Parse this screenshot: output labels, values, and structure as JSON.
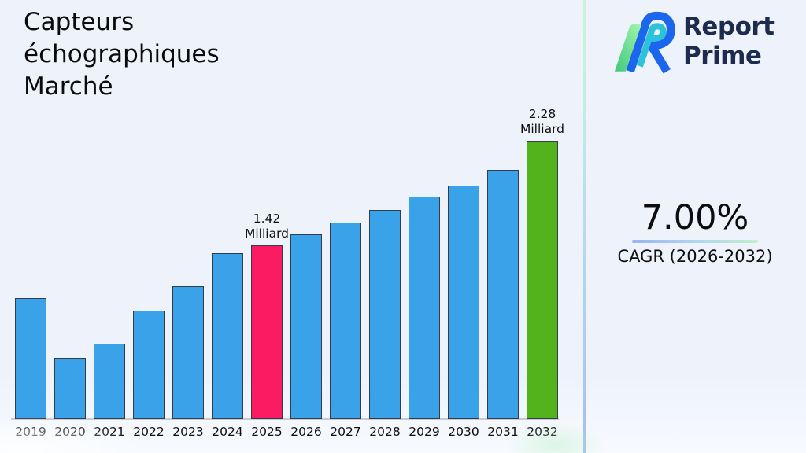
{
  "title": {
    "lines": [
      "Capteurs",
      "échographiques",
      "Marché"
    ]
  },
  "brand": {
    "line1": "Report",
    "line2": "Prime",
    "colors": {
      "navy": "#1d2b4e",
      "blue": "#1b66ec",
      "teal": "#2cc3da",
      "green_light": "#a5f6ab",
      "green_dark": "#3ec87e"
    }
  },
  "cagr": {
    "value": "7.00%",
    "label": "CAGR (2026-2032)"
  },
  "colors": {
    "background": "#edf2fb",
    "divider_top": "#ccf3da",
    "divider_bottom": "#a2c0f1",
    "underline_left": "#98b5f0",
    "underline_right": "#c1efca",
    "axis_line": "#c6cad2",
    "text": "#0e0e10"
  },
  "chart_data": {
    "type": "bar",
    "title": "Capteurs échographiques Marché",
    "categories": [
      "2019",
      "2020",
      "2021",
      "2022",
      "2023",
      "2024",
      "2025",
      "2026",
      "2027",
      "2028",
      "2029",
      "2030",
      "2031",
      "2032"
    ],
    "values": [
      0.99,
      0.5,
      0.62,
      0.89,
      1.09,
      1.36,
      1.42,
      1.51,
      1.61,
      1.71,
      1.82,
      1.91,
      2.04,
      2.28
    ],
    "unit": "Milliard",
    "ylim": [
      0,
      2.45
    ],
    "grid": false,
    "legend": "none",
    "bar_color_default": "#3aa2e9",
    "bar_border_color": "#353c49",
    "highlights": {
      "2025": "#fb1b63",
      "2032": "#53b31d"
    },
    "annotations": {
      "2025": [
        "1.42",
        "Milliard"
      ],
      "2032": [
        "2.28",
        "Milliard"
      ]
    }
  }
}
